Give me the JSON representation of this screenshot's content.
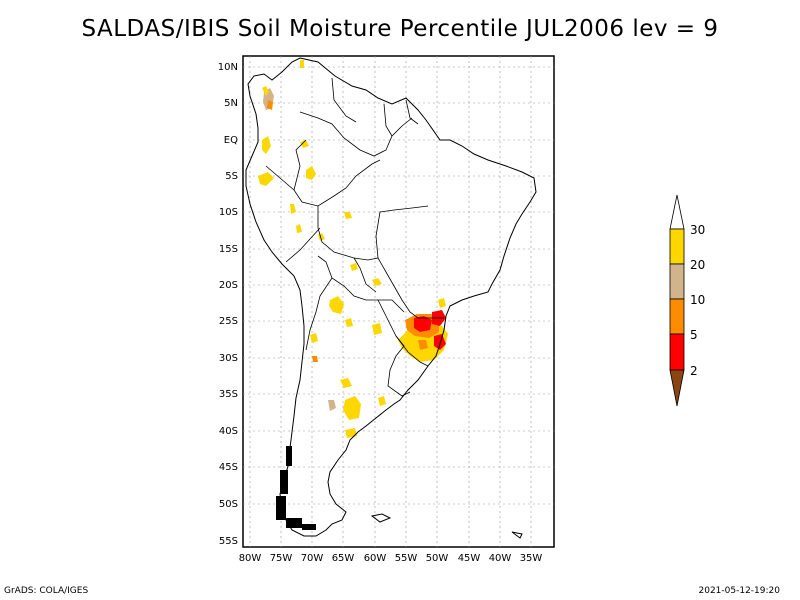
{
  "title": "SALDAS/IBIS Soil Moisture Percentile JUL2006 lev = 9",
  "map": {
    "lat_labels": [
      "10N",
      "5N",
      "EQ",
      "5S",
      "10S",
      "15S",
      "20S",
      "25S",
      "30S",
      "35S",
      "40S",
      "45S",
      "50S",
      "55S"
    ],
    "lon_labels": [
      "80W",
      "75W",
      "70W",
      "65W",
      "60W",
      "55W",
      "50W",
      "45W",
      "40W",
      "35W"
    ]
  },
  "colorbar": {
    "labels": [
      "30",
      "20",
      "10",
      "5",
      "2"
    ],
    "colors": {
      "above_30": "#ffffff",
      "20_30": "#ffd700",
      "10_20": "#d2b48c",
      "5_10": "#ff8c00",
      "2_5": "#ff0000",
      "below_2": "#8b4513"
    }
  },
  "footer": {
    "left": "GrADS: COLA/IGES",
    "right": "2021-05-12-19:20"
  }
}
